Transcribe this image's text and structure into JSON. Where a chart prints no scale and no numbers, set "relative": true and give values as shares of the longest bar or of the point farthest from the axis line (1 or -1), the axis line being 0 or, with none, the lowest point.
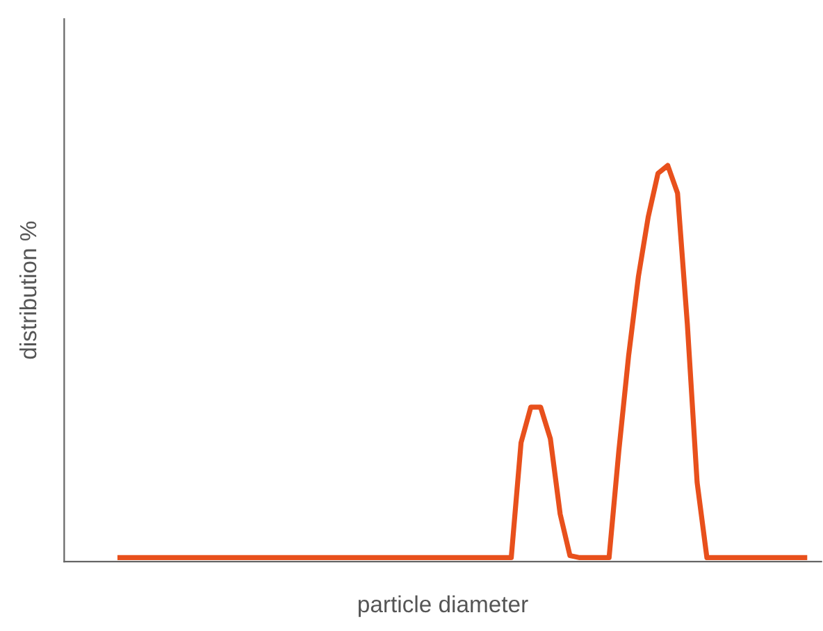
{
  "chart_data": {
    "type": "line",
    "relative": true,
    "xlabel": "particle diameter",
    "ylabel": "distribution %",
    "grid": false,
    "legend": false,
    "marker": "none",
    "line_style": "solid",
    "categories": [
      null,
      null,
      null,
      null,
      null,
      null,
      null,
      null,
      null,
      null,
      null,
      null,
      null,
      null,
      null,
      null,
      null,
      null,
      null,
      null,
      null,
      null,
      null,
      null,
      null,
      null,
      null,
      null,
      null,
      null,
      null,
      null,
      null,
      null,
      null,
      null,
      null,
      null,
      null,
      null,
      null,
      null,
      null,
      null,
      null,
      null,
      null,
      null,
      null,
      null,
      null,
      null,
      null,
      null,
      null,
      null,
      null,
      null,
      null,
      null,
      null,
      null,
      null,
      null,
      null,
      null,
      null,
      null,
      null,
      null,
      null
    ],
    "series": [
      {
        "color": "#e8501c",
        "values": [
          0.01,
          0.01,
          0.01,
          0.01,
          0.01,
          0.01,
          0.01,
          0.01,
          0.01,
          0.01,
          0.01,
          0.01,
          0.01,
          0.01,
          0.01,
          0.01,
          0.01,
          0.01,
          0.01,
          0.01,
          0.01,
          0.01,
          0.01,
          0.01,
          0.01,
          0.01,
          0.01,
          0.01,
          0.01,
          0.01,
          0.01,
          0.01,
          0.01,
          0.01,
          0.01,
          0.01,
          0.01,
          0.01,
          0.01,
          0.01,
          0.01,
          0.3,
          0.39,
          0.39,
          0.31,
          0.12,
          0.015,
          0.01,
          0.01,
          0.01,
          0.01,
          0.28,
          0.52,
          0.72,
          0.87,
          0.98,
          1.0,
          0.93,
          0.6,
          0.2,
          0.01,
          0.01,
          0.01,
          0.01,
          0.01,
          0.01,
          0.01,
          0.01,
          0.01,
          0.01,
          0.01
        ]
      }
    ]
  }
}
